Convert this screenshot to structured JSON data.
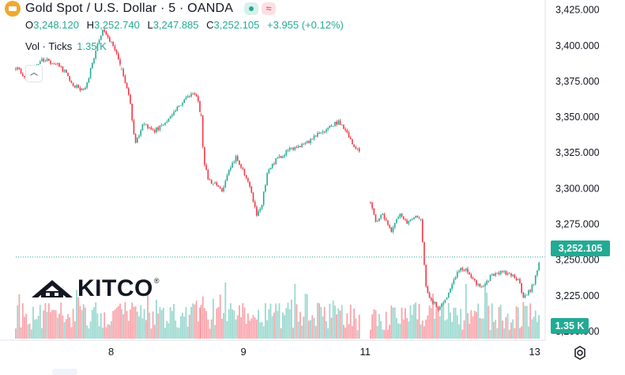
{
  "header": {
    "symbol_title": "Gold Spot / U.S. Dollar · 5 · OANDA",
    "ohlc": [
      {
        "key": "O",
        "value": "3,248.120"
      },
      {
        "key": "H",
        "value": "3,252.740"
      },
      {
        "key": "L",
        "value": "3,247.885"
      },
      {
        "key": "C",
        "value": "3,252.105"
      }
    ],
    "change": "+3.955 (+0.12%)",
    "volume_label": "Vol · Ticks",
    "volume_value": "1.35 K",
    "badge_red": "≈"
  },
  "logo": {
    "text": "KITCO",
    "reg": "®"
  },
  "price_tag": "3,252.105",
  "volume_tag": "1.35 K",
  "colors": {
    "up": "#22ab94",
    "down": "#f23645",
    "text": "#131722",
    "axis_line": "#e0e3eb"
  },
  "chart_data": {
    "type": "candlestick",
    "title": "Gold Spot / U.S. Dollar · 5 · OANDA",
    "interval": "5 minutes",
    "y_ticks": [
      "3,425.000",
      "3,400.000",
      "3,375.000",
      "3,350.000",
      "3,325.000",
      "3,300.000",
      "3,275.000",
      "3,250.000",
      "3,225.000",
      "3,200.000"
    ],
    "y_tick_values": [
      3425,
      3400,
      3375,
      3350,
      3325,
      3300,
      3275,
      3250,
      3225,
      3200
    ],
    "ylim": [
      3195,
      3432
    ],
    "x_ticks": [
      {
        "label": "8",
        "t": 0.18
      },
      {
        "label": "9",
        "t": 0.43
      },
      {
        "label": "11",
        "t": 0.66
      },
      {
        "label": "13",
        "t": 0.98
      }
    ],
    "last_price": 3252.105,
    "last_volume": "1.35 K",
    "volume_max_k": 4.5,
    "segments": [
      {
        "x": [
          0.0,
          0.02,
          0.05,
          0.08,
          0.11,
          0.13,
          0.15,
          0.165,
          0.175,
          0.185,
          0.2
        ],
        "y": [
          3385,
          3378,
          3390,
          3388,
          3372,
          3368,
          3395,
          3412,
          3405,
          3400,
          3382
        ]
      },
      {
        "x": [
          0.2,
          0.215,
          0.225,
          0.24,
          0.26,
          0.28,
          0.3,
          0.32,
          0.335,
          0.345,
          0.35
        ],
        "y": [
          3382,
          3365,
          3330,
          3345,
          3340,
          3345,
          3355,
          3362,
          3368,
          3360,
          3350
        ]
      },
      {
        "x": [
          0.35,
          0.355,
          0.365,
          0.38,
          0.39,
          0.4,
          0.415,
          0.43,
          0.445,
          0.455,
          0.465,
          0.475,
          0.49,
          0.52,
          0.55,
          0.58,
          0.6,
          0.61,
          0.625,
          0.635,
          0.65
        ],
        "y": [
          3350,
          3320,
          3305,
          3302,
          3298,
          3310,
          3322,
          3312,
          3298,
          3282,
          3290,
          3310,
          3320,
          3328,
          3332,
          3340,
          3345,
          3347,
          3340,
          3332,
          3325
        ]
      },
      {
        "x": [
          0.67,
          0.68,
          0.69,
          0.7,
          0.71,
          0.725,
          0.74,
          0.755,
          0.765
        ],
        "y": [
          3290,
          3276,
          3283,
          3278,
          3270,
          3282,
          3275,
          3280,
          3278
        ]
      },
      {
        "x": [
          0.765,
          0.77,
          0.775,
          0.785,
          0.8,
          0.81,
          0.82,
          0.83,
          0.84,
          0.85,
          0.865,
          0.88,
          0.9,
          0.92,
          0.935,
          0.95,
          0.96,
          0.97,
          0.98,
          0.99
        ],
        "y": [
          3278,
          3255,
          3230,
          3222,
          3216,
          3222,
          3228,
          3238,
          3245,
          3244,
          3235,
          3231,
          3240,
          3242,
          3240,
          3235,
          3223,
          3228,
          3235,
          3252
        ]
      }
    ]
  }
}
